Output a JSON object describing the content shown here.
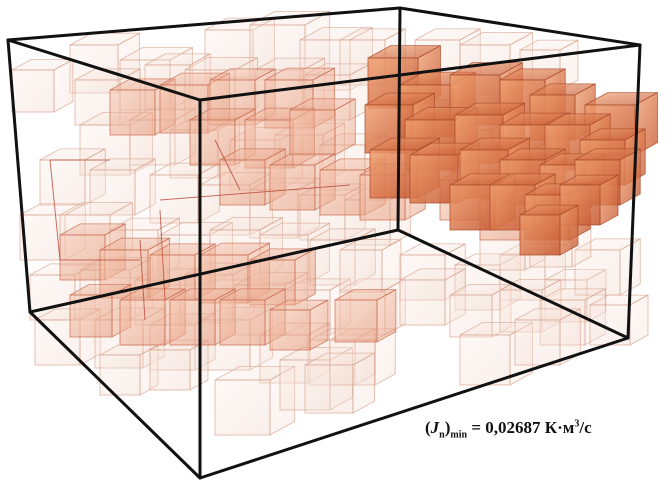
{
  "caption": {
    "symbol": "J",
    "symbol_sub": "n",
    "bracket_sub": "min",
    "equals": "=",
    "value": "0,02687",
    "unit_main": "К·м",
    "unit_exp": "3",
    "unit_tail": "/с"
  },
  "colors": {
    "frame": "#111111",
    "cube_light": "#f3d9cf",
    "cube_mid": "#e8a585",
    "cube_dark": "#d9673a",
    "cube_edge": "#c96a4d"
  }
}
